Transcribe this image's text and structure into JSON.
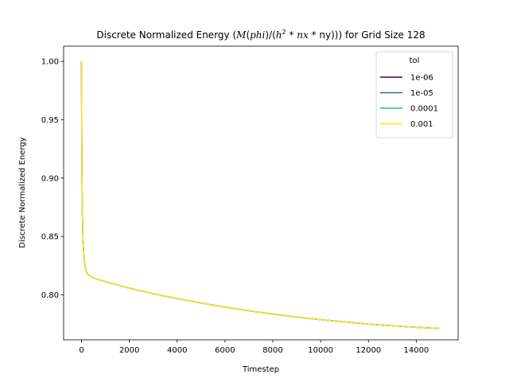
{
  "chart_data": {
    "type": "line",
    "title": "Discrete Normalized Energy ($M(phi)/(h^2 * nx * ny)$) for Grid Size 128",
    "xlabel": "Timestep",
    "ylabel": "Discrete Normalized Energy",
    "xlim": [
      -750,
      15750
    ],
    "ylim": [
      0.7615,
      1.013
    ],
    "xticks": [
      0,
      2000,
      4000,
      6000,
      8000,
      10000,
      12000,
      14000
    ],
    "xtick_labels": [
      "0",
      "2000",
      "4000",
      "6000",
      "8000",
      "10000",
      "12000",
      "14000"
    ],
    "yticks": [
      0.8,
      0.85,
      0.9,
      0.95,
      1.0
    ],
    "ytick_labels": [
      "0.80",
      "0.85",
      "0.90",
      "0.95",
      "1.00"
    ],
    "grid": false,
    "legend": {
      "title": "tol",
      "position": "upper-right"
    },
    "x": [
      0,
      10,
      30,
      60,
      100,
      150,
      200,
      250,
      300,
      400,
      500,
      600,
      800,
      1000,
      1500,
      2000,
      3000,
      4000,
      5000,
      6000,
      7000,
      8000,
      9000,
      10000,
      11000,
      12000,
      13000,
      14000,
      15000
    ],
    "series": [
      {
        "name": "1e-06",
        "color": "#440154"
      },
      {
        "name": "1e-05",
        "color": "#31688e"
      },
      {
        "name": "0.0001",
        "color": "#35b779"
      },
      {
        "name": "0.001",
        "color": "#fde725"
      }
    ],
    "values": [
      1.0,
      0.93,
      0.875,
      0.847,
      0.832,
      0.824,
      0.82,
      0.818,
      0.817,
      0.8155,
      0.8145,
      0.8138,
      0.8125,
      0.8113,
      0.8085,
      0.8058,
      0.801,
      0.7968,
      0.793,
      0.7895,
      0.7864,
      0.7836,
      0.781,
      0.7788,
      0.7768,
      0.775,
      0.7735,
      0.7722,
      0.7712
    ]
  }
}
